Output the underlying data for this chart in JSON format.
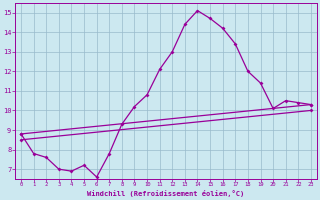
{
  "xlabel": "Windchill (Refroidissement éolien,°C)",
  "bg_color": "#cce8f0",
  "line_color": "#990099",
  "grid_color": "#99bbcc",
  "xlim": [
    -0.5,
    23.5
  ],
  "ylim": [
    6.5,
    15.5
  ],
  "xticks": [
    0,
    1,
    2,
    3,
    4,
    5,
    6,
    7,
    8,
    9,
    10,
    11,
    12,
    13,
    14,
    15,
    16,
    17,
    18,
    19,
    20,
    21,
    22,
    23
  ],
  "yticks": [
    7,
    8,
    9,
    10,
    11,
    12,
    13,
    14,
    15
  ],
  "curve1_x": [
    0,
    1,
    2,
    3,
    4,
    5,
    6,
    7,
    8,
    9,
    10,
    11,
    12,
    13,
    14,
    15,
    16,
    17,
    18,
    19,
    20,
    21,
    22,
    23
  ],
  "curve1_y": [
    8.8,
    7.8,
    7.6,
    7.0,
    6.9,
    7.2,
    6.6,
    7.8,
    9.3,
    10.2,
    10.8,
    12.1,
    13.0,
    14.4,
    15.1,
    14.7,
    14.2,
    13.4,
    12.0,
    11.4,
    10.1,
    10.5,
    10.4,
    10.3
  ],
  "curve2_x": [
    0,
    23
  ],
  "curve2_y": [
    8.8,
    10.3
  ],
  "curve3_x": [
    0,
    23
  ],
  "curve3_y": [
    8.5,
    10.0
  ]
}
